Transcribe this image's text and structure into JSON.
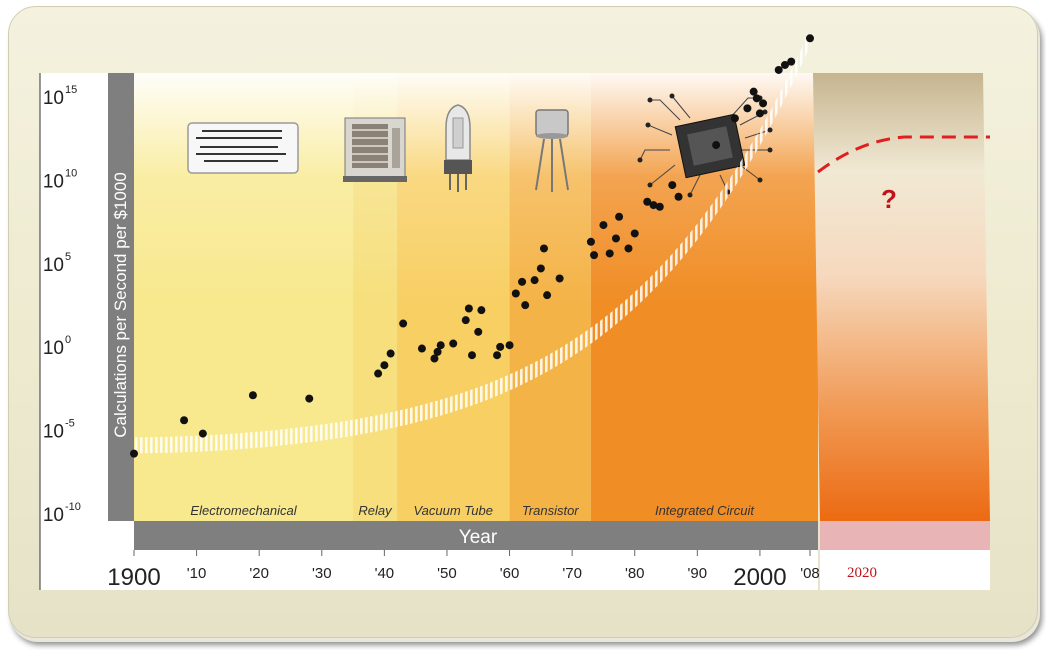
{
  "chart_data": {
    "type": "scatter",
    "ylabel": "Calculations per Second per $1000",
    "xlabel": "Year",
    "x_tick_labels": [
      "1900",
      "'10",
      "'20",
      "'30",
      "'40",
      "'50",
      "'60",
      "'70",
      "'80",
      "'90",
      "2000",
      "'08"
    ],
    "x_tick_years": [
      1900,
      1910,
      1920,
      1930,
      1940,
      1950,
      1960,
      1970,
      1980,
      1990,
      2000,
      2008
    ],
    "y_ticks": [
      {
        "base": "10",
        "exp": "15",
        "value": 15
      },
      {
        "base": "10",
        "exp": "10",
        "value": 10
      },
      {
        "base": "10",
        "exp": "5",
        "value": 5
      },
      {
        "base": "10",
        "exp": "0",
        "value": 0
      },
      {
        "base": "10",
        "exp": "-5",
        "value": -5
      },
      {
        "base": "10",
        "exp": "-10",
        "value": -10
      }
    ],
    "y_scale": "log10",
    "xlim": [
      1900,
      2008
    ],
    "ylim_exponent": [
      -10,
      15
    ],
    "eras": [
      {
        "name": "Electromechanical",
        "start": 1900,
        "end": 1935,
        "color": "#f8e98e"
      },
      {
        "name": "Relay",
        "start": 1935,
        "end": 1942,
        "color": "#f6df7c"
      },
      {
        "name": "Vacuum Tube",
        "start": 1942,
        "end": 1960,
        "color": "#f8cf63"
      },
      {
        "name": "Transistor",
        "start": 1960,
        "end": 1973,
        "color": "#f4b347"
      },
      {
        "name": "Integrated Circuit",
        "start": 1973,
        "end": 2008,
        "color": "#f08d25"
      }
    ],
    "points": [
      {
        "x": 1900,
        "y": -6.5
      },
      {
        "x": 1908,
        "y": -4.5
      },
      {
        "x": 1911,
        "y": -5.3
      },
      {
        "x": 1919,
        "y": -3.0
      },
      {
        "x": 1928,
        "y": -3.2
      },
      {
        "x": 1939,
        "y": -1.7
      },
      {
        "x": 1940,
        "y": -1.2
      },
      {
        "x": 1941,
        "y": -0.5
      },
      {
        "x": 1943,
        "y": 1.3
      },
      {
        "x": 1946,
        "y": -0.2
      },
      {
        "x": 1948,
        "y": -0.8
      },
      {
        "x": 1948.5,
        "y": -0.4
      },
      {
        "x": 1949,
        "y": 0.0
      },
      {
        "x": 1951,
        "y": 0.1
      },
      {
        "x": 1953,
        "y": 1.5
      },
      {
        "x": 1953.5,
        "y": 2.2
      },
      {
        "x": 1954,
        "y": -0.6
      },
      {
        "x": 1955,
        "y": 0.8
      },
      {
        "x": 1955.5,
        "y": 2.1
      },
      {
        "x": 1958,
        "y": -0.6
      },
      {
        "x": 1958.5,
        "y": -0.1
      },
      {
        "x": 1960,
        "y": 0.0
      },
      {
        "x": 1961,
        "y": 3.1
      },
      {
        "x": 1962,
        "y": 3.8
      },
      {
        "x": 1962.5,
        "y": 2.4
      },
      {
        "x": 1964,
        "y": 3.9
      },
      {
        "x": 1965,
        "y": 4.6
      },
      {
        "x": 1965.5,
        "y": 5.8
      },
      {
        "x": 1966,
        "y": 3.0
      },
      {
        "x": 1968,
        "y": 4.0
      },
      {
        "x": 1973,
        "y": 6.2
      },
      {
        "x": 1973.5,
        "y": 5.4
      },
      {
        "x": 1975,
        "y": 7.2
      },
      {
        "x": 1976,
        "y": 5.5
      },
      {
        "x": 1977,
        "y": 6.4
      },
      {
        "x": 1977.5,
        "y": 7.7
      },
      {
        "x": 1979,
        "y": 5.8
      },
      {
        "x": 1980,
        "y": 6.7
      },
      {
        "x": 1982,
        "y": 8.6
      },
      {
        "x": 1983,
        "y": 8.4
      },
      {
        "x": 1984,
        "y": 8.3
      },
      {
        "x": 1986,
        "y": 9.6
      },
      {
        "x": 1987,
        "y": 8.9
      },
      {
        "x": 1993,
        "y": 12.0
      },
      {
        "x": 1996,
        "y": 13.6
      },
      {
        "x": 1998,
        "y": 14.2
      },
      {
        "x": 1999,
        "y": 15.2
      },
      {
        "x": 1999.5,
        "y": 14.8
      },
      {
        "x": 2000,
        "y": 13.9
      },
      {
        "x": 2000.5,
        "y": 14.5
      },
      {
        "x": 2003,
        "y": 16.5
      },
      {
        "x": 2004,
        "y": 16.8
      },
      {
        "x": 2005,
        "y": 17.0
      },
      {
        "x": 2008,
        "y": 18.4
      }
    ],
    "trend_band": true
  },
  "projection": {
    "year_label": "2020",
    "question_mark": "?",
    "line_color": "#e02020",
    "label_color": "#c0121a"
  },
  "colors": {
    "axis_bar": "#7f7f7f",
    "point": "#111111",
    "projection_top": "#c9b994",
    "projection_bottom": "#ee6a12",
    "projection_axis": "#e8b4b5"
  }
}
